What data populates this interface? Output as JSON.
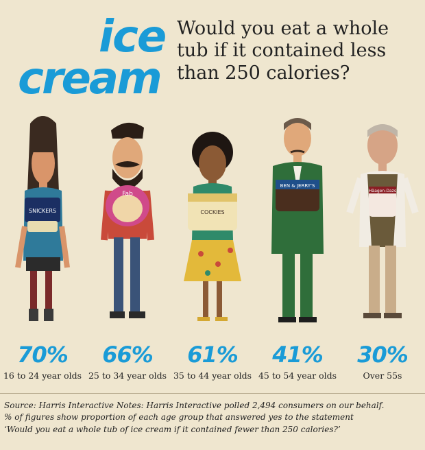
{
  "logo": {
    "line1": "ice",
    "line2": "cream"
  },
  "headline": "Would you eat a whole tub if it contained less than 250 calories?",
  "chart_data": {
    "type": "bar",
    "title": "Would you eat a whole tub if it contained less than 250 calories?",
    "categories": [
      "16 to 24 year olds",
      "25 to 34 year olds",
      "35 to 44 year olds",
      "45 to 54 year olds",
      "Over 55s"
    ],
    "values": [
      70,
      66,
      61,
      41,
      30
    ],
    "value_labels": [
      "70%",
      "66%",
      "61%",
      "41%",
      "30%"
    ],
    "unit": "%"
  },
  "source": {
    "line1": "Source: Harris Interactive Notes: Harris Interactive polled 2,494 consumers on our behalf.",
    "line2": "% of figures show proportion of each age group that answered yes to the statement",
    "line3": "‘Would you eat a whole tub of ice cream if it contained fewer than 250 calories?’"
  },
  "tub_labels": [
    "SNICKERS",
    "Fab",
    "COCKIES",
    "BEN & JERRY'S",
    "Häagen-Dazs"
  ],
  "colors": {
    "accent": "#1a9bd7",
    "background": "#efe6cf",
    "text": "#222222"
  }
}
